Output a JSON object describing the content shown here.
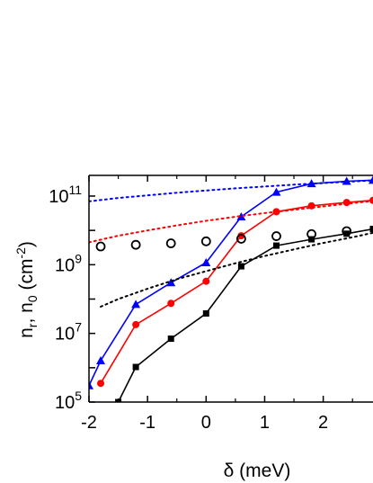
{
  "chart_data": {
    "type": "scatter",
    "xlabel": "δ (meV)",
    "ylabel_main": "n",
    "ylabel_sub1": "r",
    "ylabel_mid": ", n",
    "ylabel_sub2": "0",
    "ylabel_unit_open": " (cm",
    "ylabel_unit_exp": "-2",
    "ylabel_unit_close": ")",
    "y_scale": "log",
    "xlim": [
      -2,
      2.85
    ],
    "ylim": [
      100000,
      400000000000
    ],
    "x_ticks": [
      {
        "value": -2,
        "label": "-2"
      },
      {
        "value": -1,
        "label": "-1"
      },
      {
        "value": 0,
        "label": "0"
      },
      {
        "value": 1,
        "label": "1"
      },
      {
        "value": 2,
        "label": "2"
      }
    ],
    "y_ticks": [
      {
        "value": 100000,
        "base": "10",
        "exp": "5"
      },
      {
        "value": 10000000,
        "base": "10",
        "exp": "7"
      },
      {
        "value": 1000000000,
        "base": "10",
        "exp": "9"
      },
      {
        "value": 100000000000,
        "base": "10",
        "exp": "11"
      }
    ],
    "series": [
      {
        "color": "#0000ff",
        "marker": "triangle",
        "line": "solid",
        "x": [
          -2.0,
          -1.8,
          -1.2,
          -0.6,
          0.0,
          0.6,
          1.2,
          1.8,
          2.4,
          2.85
        ],
        "values": [
          300000,
          1600000,
          70000000,
          300000000,
          1150000000,
          25000000000,
          130000000000,
          230000000000,
          270000000000,
          290000000000
        ]
      },
      {
        "color": "#ff0000",
        "marker": "circle",
        "line": "solid",
        "x": [
          -1.8,
          -1.2,
          -0.6,
          0.0,
          0.6,
          1.2,
          1.8,
          2.4,
          2.85
        ],
        "values": [
          350000,
          18000000,
          75000000,
          330000000,
          7000000000,
          35000000000,
          52000000000,
          65000000000,
          75000000000
        ]
      },
      {
        "color": "#000000",
        "marker": "square",
        "line": "solid",
        "x": [
          -1.5,
          -1.2,
          -0.6,
          0.0,
          0.6,
          1.2,
          1.8,
          2.4,
          2.85
        ],
        "values": [
          100000,
          1050000,
          7000000,
          38000000,
          900000000,
          3600000000,
          5500000000,
          8000000000,
          11000000000
        ]
      },
      {
        "color": "#000000",
        "marker": "open-circle",
        "line": "none",
        "x": [
          -1.8,
          -1.2,
          -0.6,
          0.0,
          0.6,
          1.2,
          1.8,
          2.4
        ],
        "values": [
          3400000000,
          3800000000,
          4200000000,
          4800000000,
          5700000000,
          6800000000,
          7800000000,
          9500000000
        ]
      },
      {
        "color": "#0000ff",
        "marker": "none",
        "line": "dotted",
        "x": [
          -2.0,
          -1.5,
          -1.0,
          -0.5,
          0.0,
          0.5,
          1.0,
          1.5,
          2.0,
          2.5,
          2.85
        ],
        "values": [
          70000000000,
          88000000000,
          105000000000,
          125000000000,
          145000000000,
          168000000000,
          190000000000,
          215000000000,
          240000000000,
          265000000000,
          285000000000
        ]
      },
      {
        "color": "#ff0000",
        "marker": "none",
        "line": "dotted",
        "x": [
          -2.0,
          -1.5,
          -1.0,
          -0.5,
          0.0,
          0.5,
          1.0,
          1.5,
          2.0,
          2.5,
          2.85
        ],
        "values": [
          4500000000,
          7000000000,
          10000000000,
          14000000000,
          19000000000,
          25000000000,
          32000000000,
          40000000000,
          50000000000,
          62000000000,
          72000000000
        ]
      },
      {
        "color": "#000000",
        "marker": "none",
        "line": "dotted",
        "x": [
          -1.8,
          -1.5,
          -1.0,
          -0.5,
          0.0,
          0.5,
          1.0,
          1.5,
          2.0,
          2.5,
          2.85
        ],
        "values": [
          60000000,
          100000000,
          200000000,
          380000000,
          650000000,
          1100000000,
          1800000000,
          2800000000,
          4300000000,
          6300000000,
          8500000000
        ]
      }
    ]
  }
}
